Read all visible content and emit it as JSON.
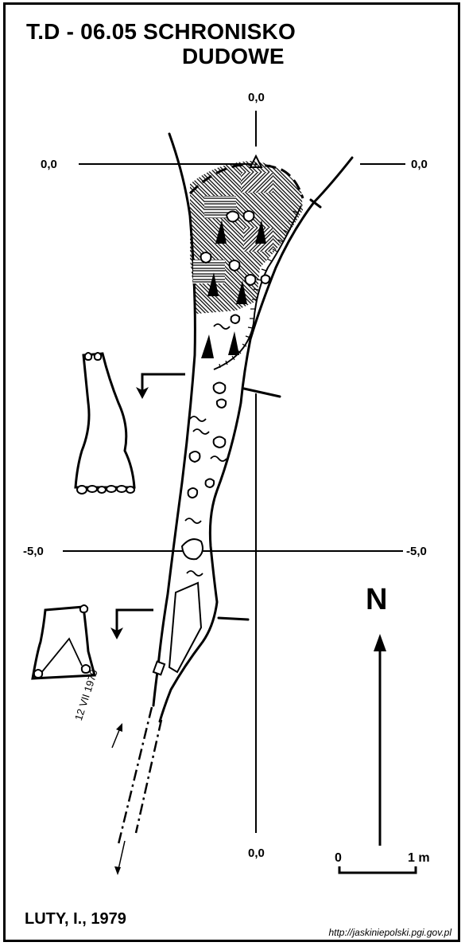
{
  "title": {
    "line1": "T.D - 06.05  SCHRONISKO",
    "line2": "DUDOWE"
  },
  "axis_labels": {
    "top": "0,0",
    "left": "0,0",
    "right": "0,0",
    "left_minus5": "-5,0",
    "right_minus5": "-5,0",
    "bottom": "0,0"
  },
  "north": "N",
  "scale": {
    "start": "0",
    "end": "1 m"
  },
  "date_note": "12 VII 1979",
  "author": "LUTY, I., 1979",
  "source": "http://jaskiniepolski.pgi.gov.pl",
  "colors": {
    "ink": "#000000",
    "paper": "#ffffff"
  }
}
